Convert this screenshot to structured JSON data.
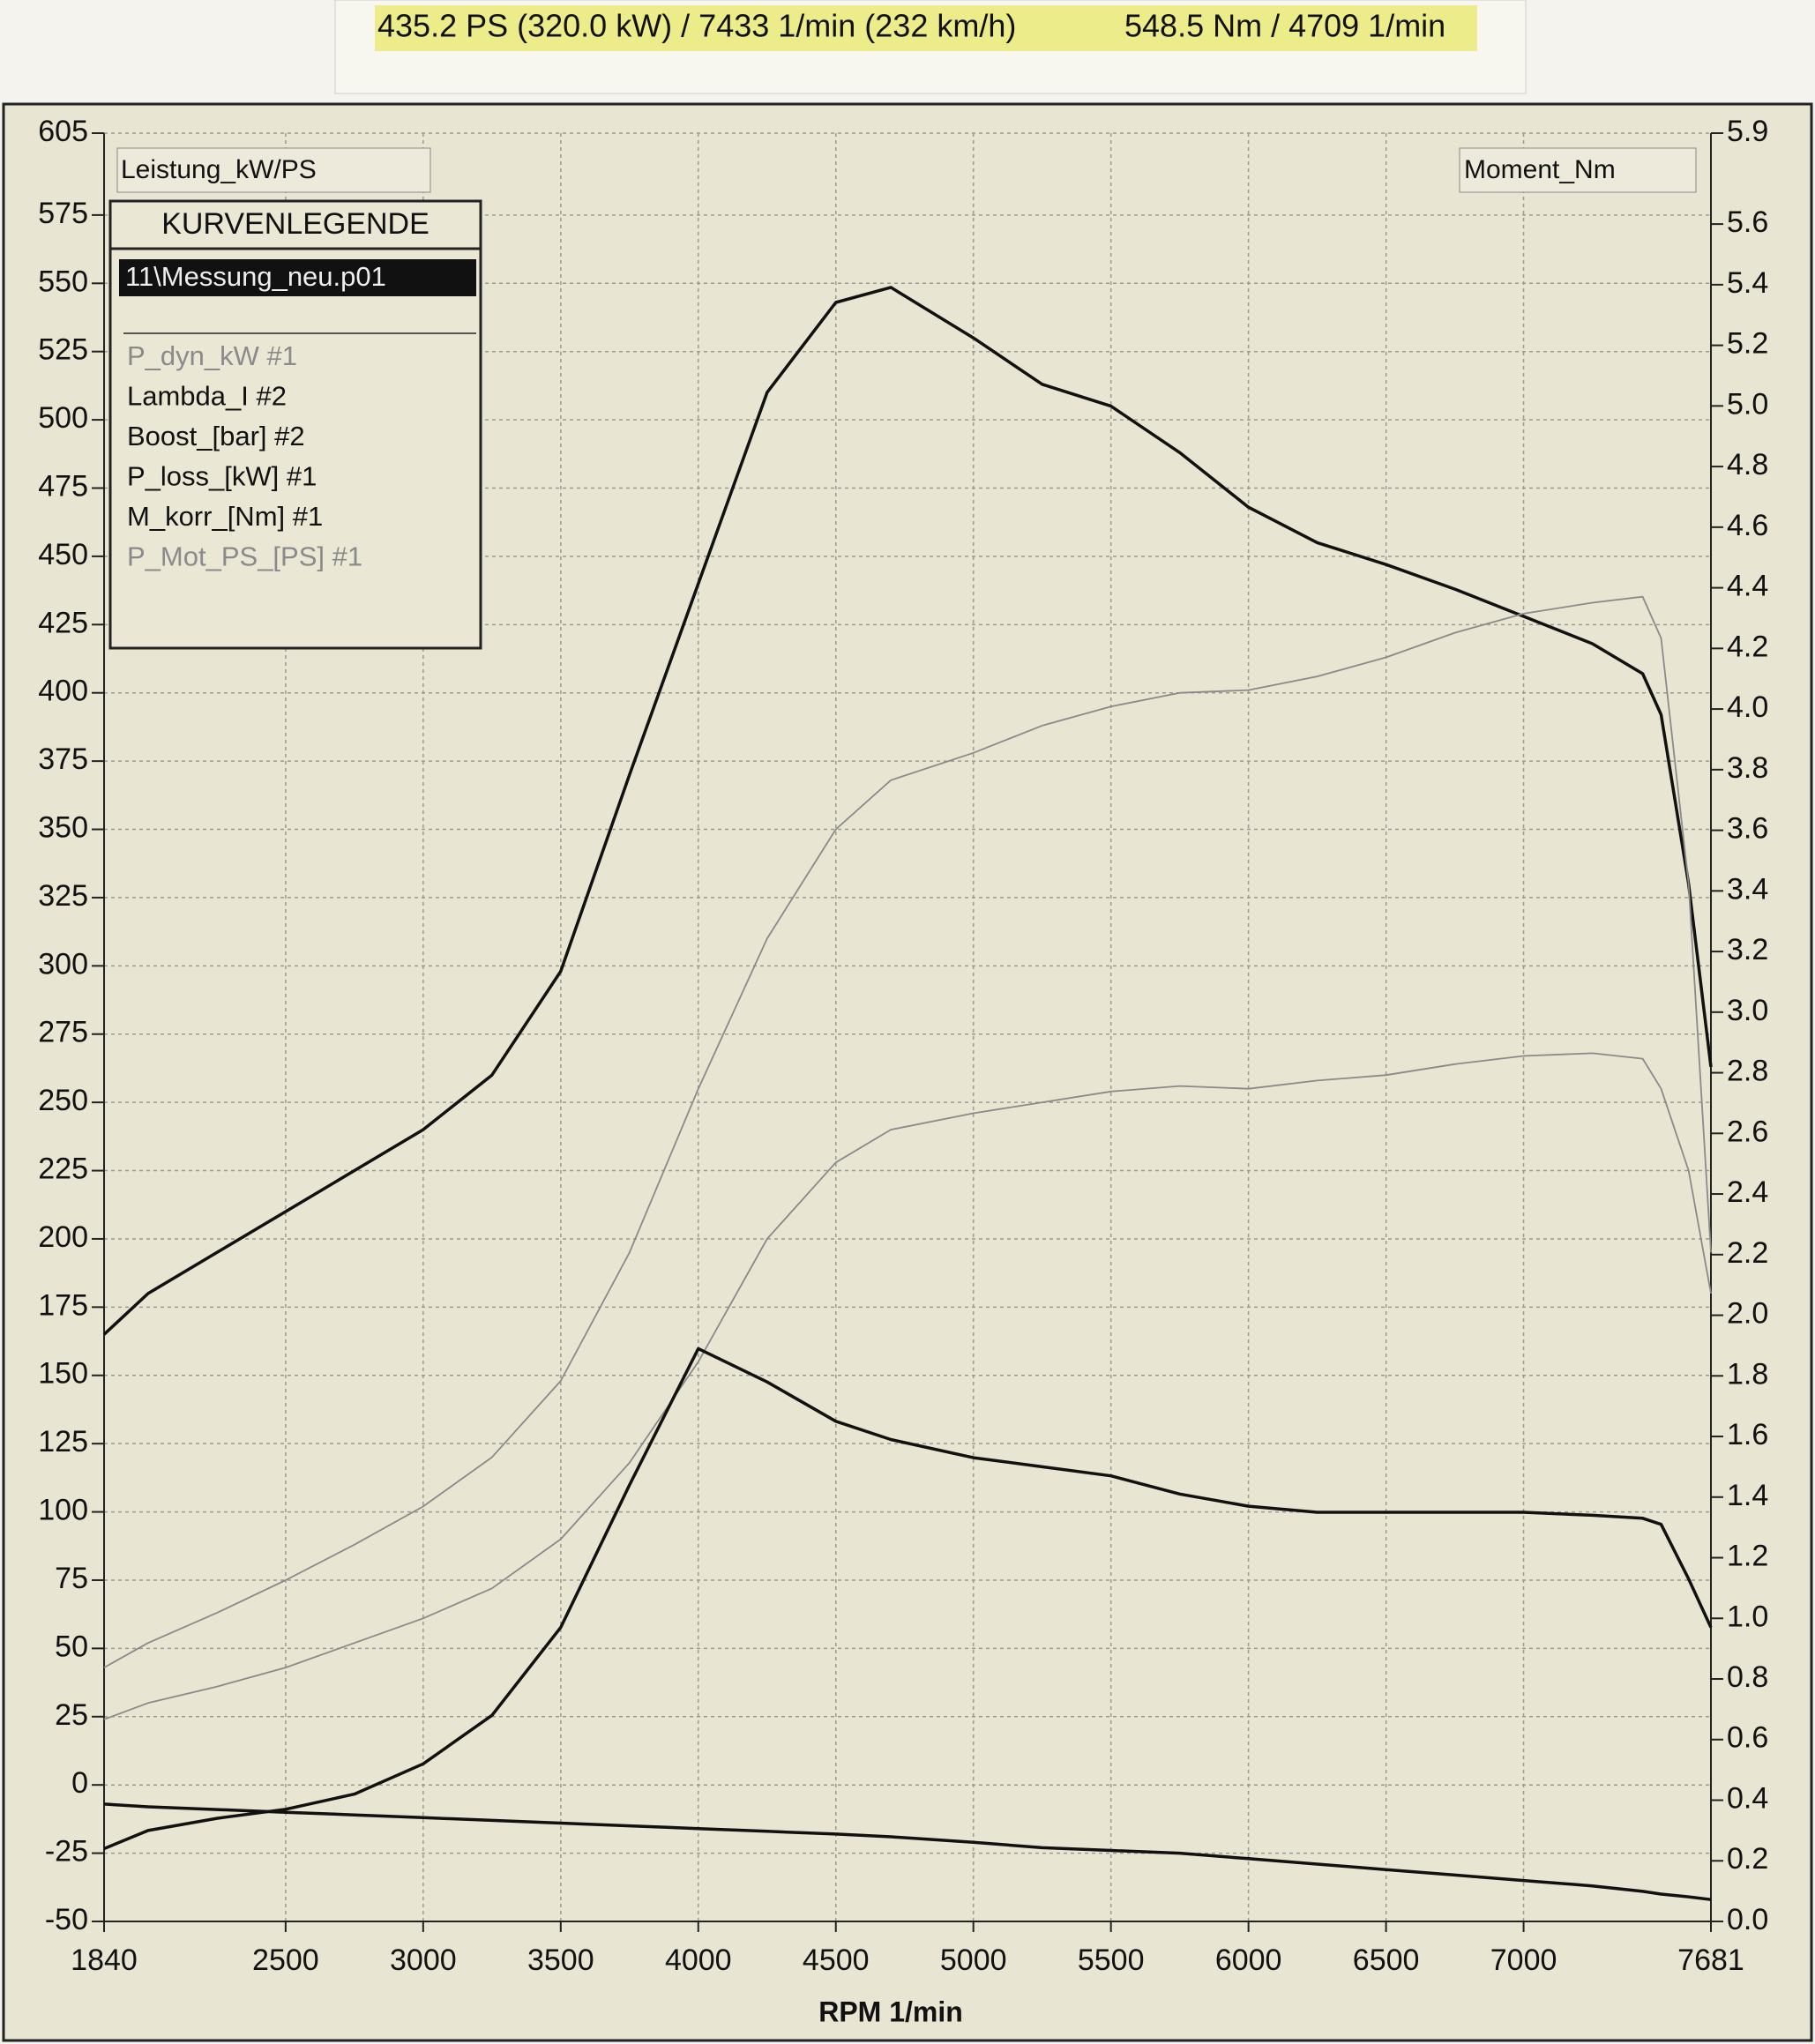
{
  "chart_data": {
    "type": "line",
    "header": [
      "435.2 PS  (320.0 kW) / 7433 1/min (232 km/h)",
      "548.5 Nm / 4709 1/min"
    ],
    "y_label": "Leistung_kW/PS",
    "y2_label": "Moment_Nm",
    "x_label": "RPM  1/min",
    "legend_title": "KURVENLEGENDE",
    "legend_file": "11\\Messung_neu.p01",
    "grid": true,
    "xlim": [
      1840,
      7681
    ],
    "xticks": [
      1840,
      2500,
      3000,
      3500,
      4000,
      4500,
      5000,
      5500,
      6000,
      6500,
      7000,
      7681
    ],
    "ylim": [
      -50,
      605
    ],
    "yticks": [
      -50,
      -25,
      0,
      25,
      50,
      75,
      100,
      125,
      150,
      175,
      200,
      225,
      250,
      275,
      300,
      325,
      350,
      375,
      400,
      425,
      450,
      475,
      500,
      525,
      550,
      575,
      605
    ],
    "y2lim": [
      0,
      5.9
    ],
    "y2ticks": [
      {
        "value": 0,
        "label": "0.0"
      },
      0.2,
      0.4,
      0.6,
      0.8,
      {
        "value": 1,
        "label": "1.0"
      },
      1.2,
      1.4,
      1.6,
      1.8,
      {
        "value": 2,
        "label": "2.0"
      },
      2.2,
      2.4,
      2.6,
      2.8,
      {
        "value": 3,
        "label": "3.0"
      },
      3.2,
      3.4,
      3.6,
      3.8,
      {
        "value": 4,
        "label": "4.0"
      },
      4.2,
      4.4,
      4.6,
      4.8,
      {
        "value": 5,
        "label": "5.0"
      },
      5.2,
      5.4,
      5.6,
      5.9
    ],
    "x": [
      1840,
      2000,
      2250,
      2500,
      2750,
      3000,
      3250,
      3500,
      3750,
      4000,
      4250,
      4500,
      4700,
      5000,
      5250,
      5500,
      5750,
      6000,
      6250,
      6500,
      6750,
      7000,
      7250,
      7433,
      7500,
      7600,
      7681
    ],
    "series": [
      {
        "name": "P_dyn_kW #1",
        "color": "#8a8a8a",
        "values": [
          24,
          30,
          36,
          43,
          52,
          61,
          72,
          90,
          118,
          155,
          200,
          228,
          240,
          246,
          250,
          254,
          256,
          255,
          258,
          260,
          264,
          267,
          268,
          266,
          255,
          225,
          180
        ]
      },
      {
        "name": "Lambda_I #2",
        "color": "#111111",
        "values": [
          null,
          null,
          null,
          null,
          null,
          null,
          null,
          null,
          null,
          null,
          null,
          null,
          null,
          null,
          null,
          null,
          null,
          null,
          null,
          null,
          null,
          null,
          null,
          null,
          null,
          null,
          null
        ]
      },
      {
        "name": "Boost_[bar] #2",
        "color": "#111111",
        "axis": "y2",
        "values": [
          0.24,
          0.3,
          0.34,
          0.37,
          0.42,
          0.52,
          0.68,
          0.97,
          1.44,
          1.89,
          1.78,
          1.65,
          1.59,
          1.53,
          1.5,
          1.47,
          1.41,
          1.37,
          1.35,
          1.35,
          1.35,
          1.35,
          1.34,
          1.33,
          1.31,
          1.13,
          0.97
        ]
      },
      {
        "name": "P_loss_[kW] #1",
        "color": "#111111",
        "values": [
          -7,
          -8,
          -9,
          -10,
          -11,
          -12,
          -13,
          -14,
          -15,
          -16,
          -17,
          -18,
          -19,
          -21,
          -23,
          -24,
          -25,
          -27,
          -29,
          -31,
          -33,
          -35,
          -37,
          -39,
          -40,
          -41,
          -42
        ]
      },
      {
        "name": "M_korr_[Nm] #1",
        "color": "#111111",
        "values": [
          165,
          180,
          195,
          210,
          225,
          240,
          260,
          298,
          370,
          440,
          510,
          543,
          548.5,
          530,
          513,
          505,
          488,
          468,
          455,
          447,
          438,
          428,
          418,
          407,
          392,
          330,
          263
        ]
      },
      {
        "name": "P_Mot_PS_[PS] #1",
        "color": "#8a8a8a",
        "values": [
          43,
          52,
          63,
          75,
          88,
          102,
          120,
          148,
          195,
          255,
          310,
          350,
          368,
          378,
          388,
          395,
          400,
          401,
          406,
          413,
          422,
          429,
          433,
          435.2,
          420,
          330,
          195
        ]
      }
    ]
  }
}
